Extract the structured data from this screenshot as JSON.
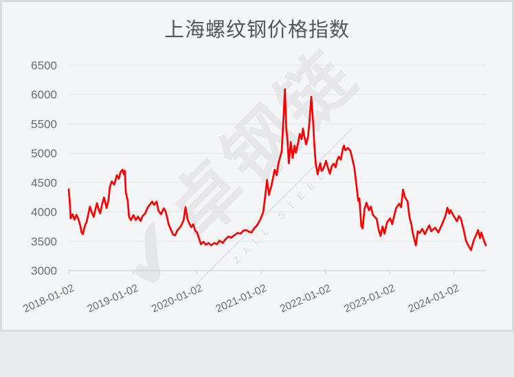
{
  "page": {
    "background": "#f4f5f6",
    "border_color": "#d9dadc"
  },
  "watermark": {
    "cn": "卓钢链",
    "en": "ZALL STEEL",
    "logo_glyph": "✔"
  },
  "chart_data": {
    "type": "line",
    "title": "上海螺纹钢价格指数",
    "xlabel": "",
    "ylabel": "",
    "grid": true,
    "legend_position": "none",
    "xlim": [
      2018.0,
      2024.5
    ],
    "ylim": [
      3000,
      6500
    ],
    "y_ticks": [
      3000,
      3500,
      4000,
      4500,
      5000,
      5500,
      6000,
      6500
    ],
    "x_ticks": [
      {
        "t": 2018,
        "label": "2018-01-02"
      },
      {
        "t": 2019,
        "label": "2019-01-02"
      },
      {
        "t": 2020,
        "label": "2020-01-02"
      },
      {
        "t": 2021,
        "label": "2021-01-02"
      },
      {
        "t": 2022,
        "label": "2022-01-02"
      },
      {
        "t": 2023,
        "label": "2023-01-02"
      },
      {
        "t": 2024,
        "label": "2024-01-02"
      }
    ],
    "colors": {
      "line": "#f80100",
      "grid_line": "#e3e4e7",
      "axis_line": "#c6c7cb",
      "tick_label": "#6b6c70",
      "title": "#55565a"
    },
    "series": [
      {
        "name": "上海螺纹钢价格指数",
        "points": [
          [
            2018.0,
            4385
          ],
          [
            2018.02,
            4110
          ],
          [
            2018.03,
            3890
          ],
          [
            2018.06,
            3960
          ],
          [
            2018.09,
            3870
          ],
          [
            2018.12,
            3950
          ],
          [
            2018.15,
            3880
          ],
          [
            2018.18,
            3770
          ],
          [
            2018.2,
            3650
          ],
          [
            2018.22,
            3620
          ],
          [
            2018.26,
            3790
          ],
          [
            2018.28,
            3830
          ],
          [
            2018.31,
            3980
          ],
          [
            2018.33,
            4090
          ],
          [
            2018.36,
            3990
          ],
          [
            2018.39,
            3915
          ],
          [
            2018.42,
            4060
          ],
          [
            2018.44,
            4150
          ],
          [
            2018.47,
            4030
          ],
          [
            2018.49,
            3975
          ],
          [
            2018.52,
            4130
          ],
          [
            2018.55,
            4245
          ],
          [
            2018.57,
            4160
          ],
          [
            2018.59,
            4065
          ],
          [
            2018.62,
            4200
          ],
          [
            2018.64,
            4420
          ],
          [
            2018.67,
            4520
          ],
          [
            2018.71,
            4465
          ],
          [
            2018.75,
            4625
          ],
          [
            2018.78,
            4565
          ],
          [
            2018.81,
            4680
          ],
          [
            2018.84,
            4720
          ],
          [
            2018.86,
            4640
          ],
          [
            2018.875,
            4700
          ],
          [
            2018.89,
            4335
          ],
          [
            2018.92,
            4185
          ],
          [
            2018.94,
            3915
          ],
          [
            2018.97,
            3860
          ],
          [
            2019.01,
            3945
          ],
          [
            2019.045,
            3860
          ],
          [
            2019.08,
            3920
          ],
          [
            2019.12,
            3845
          ],
          [
            2019.15,
            3930
          ],
          [
            2019.19,
            3970
          ],
          [
            2019.23,
            4075
          ],
          [
            2019.3,
            4175
          ],
          [
            2019.33,
            4120
          ],
          [
            2019.37,
            4175
          ],
          [
            2019.4,
            4020
          ],
          [
            2019.44,
            3960
          ],
          [
            2019.48,
            4060
          ],
          [
            2019.51,
            4010
          ],
          [
            2019.56,
            3780
          ],
          [
            2019.6,
            3680
          ],
          [
            2019.63,
            3610
          ],
          [
            2019.66,
            3600
          ],
          [
            2019.69,
            3680
          ],
          [
            2019.72,
            3720
          ],
          [
            2019.75,
            3760
          ],
          [
            2019.79,
            3860
          ],
          [
            2019.82,
            4080
          ],
          [
            2019.85,
            3880
          ],
          [
            2019.88,
            3800
          ],
          [
            2019.91,
            3740
          ],
          [
            2019.94,
            3790
          ],
          [
            2019.97,
            3680
          ],
          [
            2020.0,
            3650
          ],
          [
            2020.03,
            3550
          ],
          [
            2020.06,
            3450
          ],
          [
            2020.1,
            3490
          ],
          [
            2020.14,
            3440
          ],
          [
            2020.18,
            3470
          ],
          [
            2020.22,
            3430
          ],
          [
            2020.27,
            3470
          ],
          [
            2020.31,
            3450
          ],
          [
            2020.35,
            3510
          ],
          [
            2020.4,
            3470
          ],
          [
            2020.44,
            3530
          ],
          [
            2020.49,
            3580
          ],
          [
            2020.53,
            3560
          ],
          [
            2020.58,
            3600
          ],
          [
            2020.63,
            3640
          ],
          [
            2020.68,
            3630
          ],
          [
            2020.72,
            3680
          ],
          [
            2020.77,
            3690
          ],
          [
            2020.81,
            3660
          ],
          [
            2020.85,
            3650
          ],
          [
            2020.89,
            3720
          ],
          [
            2020.92,
            3750
          ],
          [
            2020.95,
            3800
          ],
          [
            2020.98,
            3860
          ],
          [
            2021.03,
            3990
          ],
          [
            2021.06,
            4250
          ],
          [
            2021.09,
            4545
          ],
          [
            2021.12,
            4290
          ],
          [
            2021.16,
            4450
          ],
          [
            2021.21,
            4720
          ],
          [
            2021.24,
            4625
          ],
          [
            2021.27,
            4835
          ],
          [
            2021.32,
            5035
          ],
          [
            2021.35,
            5655
          ],
          [
            2021.37,
            6090
          ],
          [
            2021.39,
            5430
          ],
          [
            2021.41,
            5220
          ],
          [
            2021.43,
            4830
          ],
          [
            2021.46,
            5190
          ],
          [
            2021.49,
            4920
          ],
          [
            2021.52,
            5130
          ],
          [
            2021.54,
            5010
          ],
          [
            2021.58,
            5200
          ],
          [
            2021.6,
            5330
          ],
          [
            2021.63,
            5240
          ],
          [
            2021.65,
            5420
          ],
          [
            2021.67,
            5300
          ],
          [
            2021.7,
            5150
          ],
          [
            2021.73,
            5280
          ],
          [
            2021.75,
            5520
          ],
          [
            2021.78,
            5960
          ],
          [
            2021.81,
            5500
          ],
          [
            2021.83,
            5100
          ],
          [
            2021.85,
            4820
          ],
          [
            2021.88,
            4640
          ],
          [
            2021.9,
            4750
          ],
          [
            2021.92,
            4830
          ],
          [
            2021.94,
            4700
          ],
          [
            2021.96,
            4720
          ],
          [
            2021.99,
            4800
          ],
          [
            2022.01,
            4870
          ],
          [
            2022.04,
            4750
          ],
          [
            2022.07,
            4650
          ],
          [
            2022.1,
            4780
          ],
          [
            2022.13,
            4820
          ],
          [
            2022.16,
            4760
          ],
          [
            2022.18,
            4870
          ],
          [
            2022.21,
            4940
          ],
          [
            2022.24,
            4890
          ],
          [
            2022.27,
            5070
          ],
          [
            2022.29,
            5130
          ],
          [
            2022.31,
            5050
          ],
          [
            2022.35,
            5090
          ],
          [
            2022.39,
            5040
          ],
          [
            2022.42,
            4900
          ],
          [
            2022.45,
            4760
          ],
          [
            2022.5,
            4310
          ],
          [
            2022.51,
            4190
          ],
          [
            2022.53,
            4230
          ],
          [
            2022.56,
            3760
          ],
          [
            2022.58,
            3720
          ],
          [
            2022.61,
            4050
          ],
          [
            2022.64,
            4155
          ],
          [
            2022.68,
            4030
          ],
          [
            2022.71,
            4090
          ],
          [
            2022.74,
            3950
          ],
          [
            2022.8,
            3880
          ],
          [
            2022.83,
            3700
          ],
          [
            2022.86,
            3590
          ],
          [
            2022.89,
            3750
          ],
          [
            2022.92,
            3630
          ],
          [
            2022.96,
            3820
          ],
          [
            2023.01,
            3890
          ],
          [
            2023.04,
            3790
          ],
          [
            2023.1,
            4060
          ],
          [
            2023.15,
            4140
          ],
          [
            2023.18,
            4080
          ],
          [
            2023.21,
            4380
          ],
          [
            2023.24,
            4250
          ],
          [
            2023.28,
            4180
          ],
          [
            2023.31,
            3910
          ],
          [
            2023.34,
            3790
          ],
          [
            2023.36,
            3650
          ],
          [
            2023.4,
            3470
          ],
          [
            2023.41,
            3430
          ],
          [
            2023.44,
            3670
          ],
          [
            2023.47,
            3640
          ],
          [
            2023.51,
            3710
          ],
          [
            2023.55,
            3620
          ],
          [
            2023.58,
            3690
          ],
          [
            2023.62,
            3770
          ],
          [
            2023.65,
            3670
          ],
          [
            2023.71,
            3730
          ],
          [
            2023.76,
            3650
          ],
          [
            2023.81,
            3770
          ],
          [
            2023.87,
            3930
          ],
          [
            2023.9,
            4070
          ],
          [
            2023.93,
            3970
          ],
          [
            2023.95,
            4030
          ],
          [
            2024.0,
            3930
          ],
          [
            2024.05,
            3840
          ],
          [
            2024.08,
            3930
          ],
          [
            2024.11,
            3890
          ],
          [
            2024.16,
            3670
          ],
          [
            2024.19,
            3510
          ],
          [
            2024.24,
            3400
          ],
          [
            2024.27,
            3350
          ],
          [
            2024.31,
            3510
          ],
          [
            2024.35,
            3610
          ],
          [
            2024.38,
            3690
          ],
          [
            2024.41,
            3550
          ],
          [
            2024.43,
            3650
          ],
          [
            2024.47,
            3510
          ],
          [
            2024.5,
            3430
          ]
        ]
      }
    ]
  }
}
